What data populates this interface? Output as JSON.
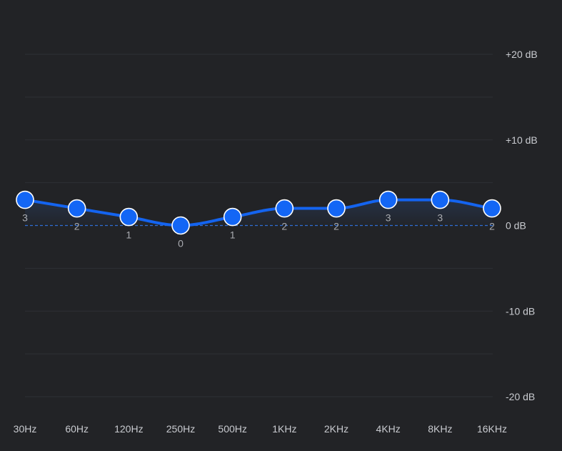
{
  "chart_data": {
    "type": "line",
    "title": "",
    "xlabel": "",
    "ylabel": "",
    "categories": [
      "30Hz",
      "60Hz",
      "120Hz",
      "250Hz",
      "500Hz",
      "1KHz",
      "2KHz",
      "4KHz",
      "8KHz",
      "16KHz"
    ],
    "values": [
      3,
      2,
      1,
      0,
      1,
      2,
      2,
      3,
      3,
      2
    ],
    "value_labels": [
      "3",
      "2",
      "1",
      "0",
      "1",
      "2",
      "2",
      "3",
      "3",
      "2"
    ],
    "ylim": [
      -20,
      20
    ],
    "y_ticks": [
      20,
      10,
      0,
      -10,
      -20
    ],
    "y_tick_labels": [
      "+20 dB",
      "+10 dB",
      "0 dB",
      "-10 dB",
      "-20 dB"
    ],
    "grid": true,
    "legend": "none",
    "colors": {
      "line": "#1464f0",
      "point": "#1366f5",
      "point_stroke": "#ffffff",
      "zero_line": "#2f6fd8",
      "background": "#222326"
    }
  }
}
